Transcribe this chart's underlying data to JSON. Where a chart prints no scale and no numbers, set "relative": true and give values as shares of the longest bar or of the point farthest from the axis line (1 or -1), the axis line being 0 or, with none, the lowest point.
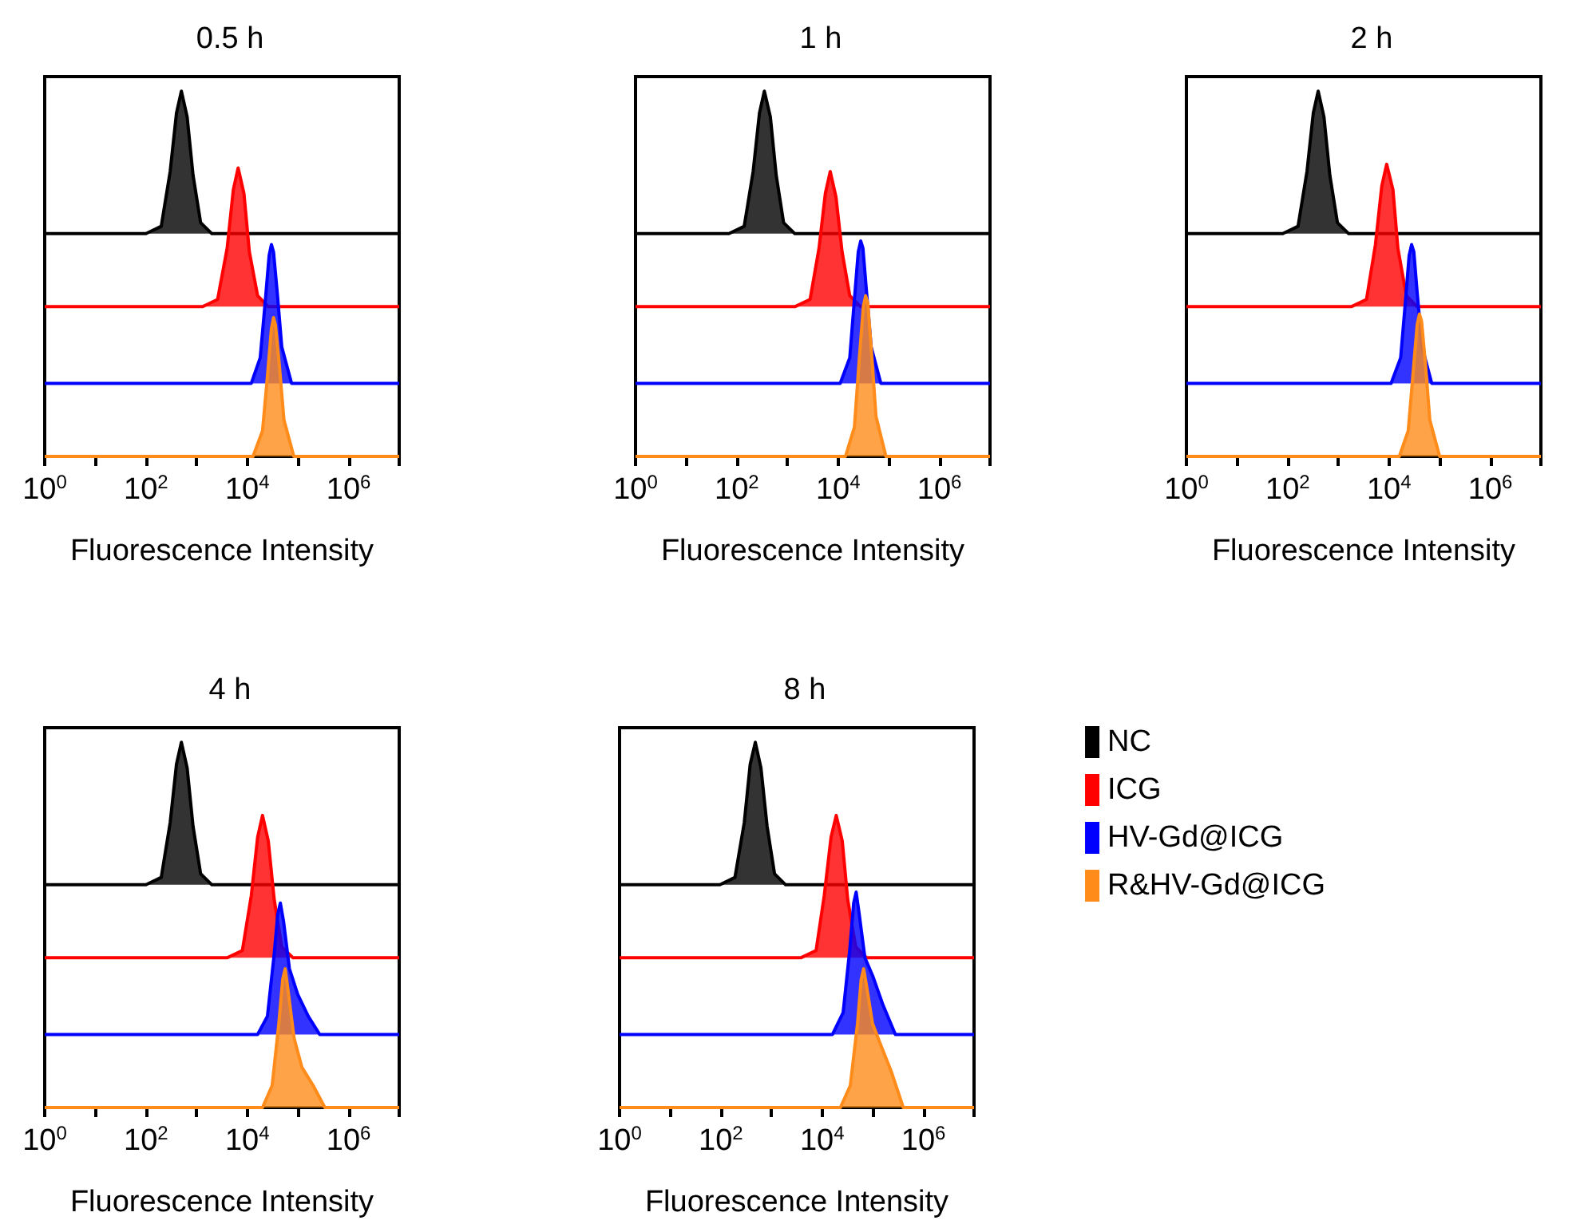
{
  "chart_data": [
    {
      "type": "area",
      "title": "0.5 h",
      "xlabel": "Fluorescence Intensity",
      "relative": true,
      "log": "x",
      "xlim": [
        1,
        10000000
      ],
      "xticks": [
        {
          "value": 1,
          "label": "10$^{0}$"
        },
        {
          "value": 10,
          "label": null
        },
        {
          "value": 100,
          "label": "10$^{2}$"
        },
        {
          "value": 1000,
          "label": null
        },
        {
          "value": 10000,
          "label": "10$^{4}$"
        },
        {
          "value": 100000,
          "label": null
        },
        {
          "value": 1000000,
          "label": "10$^{6}$"
        },
        {
          "value": 10000000,
          "label": null
        }
      ],
      "grid": false,
      "legend": false,
      "marker": "none",
      "series": [
        {
          "color": "#000000",
          "x": [
            1,
            100,
            200,
            300,
            400,
            500,
            650,
            850,
            1200,
            2000,
            10000000
          ],
          "values": [
            0.61,
            0.61,
            0.63,
            0.78,
            0.94,
            1,
            0.93,
            0.77,
            0.64,
            0.61,
            0.61
          ]
        },
        {
          "color": "#ff0000",
          "x": [
            1,
            1300,
            2600,
            4000,
            5300,
            6600,
            8600,
            11000,
            16000,
            26000,
            10000000
          ],
          "values": [
            0.41,
            0.41,
            0.43,
            0.57,
            0.73,
            0.79,
            0.72,
            0.56,
            0.44,
            0.41,
            0.41
          ]
        },
        {
          "color": "#0000ff",
          "x": [
            1,
            12000,
            18000,
            22500,
            27000,
            30000,
            33000,
            39000,
            48000,
            75000,
            10000000
          ],
          "values": [
            0.2,
            0.2,
            0.27,
            0.42,
            0.55,
            0.58,
            0.56,
            0.45,
            0.3,
            0.2,
            0.2
          ]
        },
        {
          "color": "#ff8c1a",
          "x": [
            1,
            13000,
            20000,
            25000,
            30000,
            33000,
            36000,
            43000,
            53000,
            83000,
            10000000
          ],
          "values": [
            0,
            0,
            0.07,
            0.22,
            0.35,
            0.38,
            0.36,
            0.25,
            0.1,
            0,
            0
          ]
        }
      ]
    },
    {
      "type": "area",
      "title": "1 h",
      "xlabel": "Fluorescence Intensity",
      "relative": true,
      "log": "x",
      "xlim": [
        1,
        10000000
      ],
      "xticks": [
        {
          "value": 1,
          "label": "10$^{0}$"
        },
        {
          "value": 10,
          "label": null
        },
        {
          "value": 100,
          "label": "10$^{2}$"
        },
        {
          "value": 1000,
          "label": null
        },
        {
          "value": 10000,
          "label": "10$^{4}$"
        },
        {
          "value": 100000,
          "label": null
        },
        {
          "value": 1000000,
          "label": "10$^{6}$"
        },
        {
          "value": 10000000,
          "label": null
        }
      ],
      "grid": false,
      "legend": false,
      "marker": "none",
      "series": [
        {
          "color": "#000000",
          "x": [
            1,
            70,
            140,
            210,
            280,
            350,
            460,
            600,
            840,
            1400,
            10000000
          ],
          "values": [
            0.61,
            0.61,
            0.63,
            0.78,
            0.94,
            1,
            0.93,
            0.77,
            0.64,
            0.61,
            0.61
          ]
        },
        {
          "color": "#ff0000",
          "x": [
            1,
            1400,
            2800,
            4200,
            5600,
            7000,
            9100,
            12000,
            17000,
            28000,
            10000000
          ],
          "values": [
            0.41,
            0.41,
            0.43,
            0.57,
            0.72,
            0.78,
            0.71,
            0.56,
            0.44,
            0.41,
            0.41
          ]
        },
        {
          "color": "#0000ff",
          "x": [
            1,
            11000,
            17000,
            21000,
            25000,
            28000,
            31000,
            36000,
            45000,
            70000,
            10000000
          ],
          "values": [
            0.2,
            0.2,
            0.27,
            0.43,
            0.56,
            0.59,
            0.57,
            0.46,
            0.3,
            0.2,
            0.2
          ]
        },
        {
          "color": "#ff8c1a",
          "x": [
            1,
            14000,
            21000,
            26000,
            31500,
            35000,
            38500,
            45500,
            56000,
            88000,
            10000000
          ],
          "values": [
            0,
            0,
            0.08,
            0.26,
            0.41,
            0.44,
            0.42,
            0.29,
            0.11,
            0,
            0
          ]
        }
      ]
    },
    {
      "type": "area",
      "title": "2 h",
      "xlabel": "Fluorescence Intensity",
      "relative": true,
      "log": "x",
      "xlim": [
        1,
        10000000
      ],
      "xticks": [
        {
          "value": 1,
          "label": "10$^{0}$"
        },
        {
          "value": 10,
          "label": null
        },
        {
          "value": 100,
          "label": "10$^{2}$"
        },
        {
          "value": 1000,
          "label": null
        },
        {
          "value": 10000,
          "label": "10$^{4}$"
        },
        {
          "value": 100000,
          "label": null
        },
        {
          "value": 1000000,
          "label": "10$^{6}$"
        },
        {
          "value": 10000000,
          "label": null
        }
      ],
      "grid": false,
      "legend": false,
      "marker": "none",
      "series": [
        {
          "color": "#000000",
          "x": [
            1,
            80,
            160,
            240,
            320,
            400,
            520,
            680,
            960,
            1600,
            10000000
          ],
          "values": [
            0.61,
            0.61,
            0.63,
            0.78,
            0.94,
            1,
            0.93,
            0.77,
            0.64,
            0.61,
            0.61
          ]
        },
        {
          "color": "#ff0000",
          "x": [
            1,
            1800,
            3600,
            5400,
            7200,
            9000,
            12000,
            15000,
            22000,
            36000,
            10000000
          ],
          "values": [
            0.41,
            0.41,
            0.43,
            0.58,
            0.74,
            0.8,
            0.73,
            0.57,
            0.44,
            0.41,
            0.41
          ]
        },
        {
          "color": "#0000ff",
          "x": [
            1,
            11000,
            17000,
            21000,
            25000,
            28000,
            31000,
            36000,
            45000,
            70000,
            10000000
          ],
          "values": [
            0.2,
            0.2,
            0.27,
            0.42,
            0.55,
            0.58,
            0.56,
            0.45,
            0.3,
            0.2,
            0.2
          ]
        },
        {
          "color": "#ff8c1a",
          "x": [
            1,
            16000,
            24000,
            30000,
            36000,
            40000,
            44000,
            52000,
            64000,
            100000,
            10000000
          ],
          "values": [
            0,
            0,
            0.07,
            0.23,
            0.36,
            0.39,
            0.37,
            0.26,
            0.1,
            0,
            0
          ]
        }
      ]
    },
    {
      "type": "area",
      "title": "4 h",
      "xlabel": "Fluorescence Intensity",
      "relative": true,
      "log": "x",
      "xlim": [
        1,
        10000000
      ],
      "xticks": [
        {
          "value": 1,
          "label": "10$^{0}$"
        },
        {
          "value": 10,
          "label": null
        },
        {
          "value": 100,
          "label": "10$^{2}$"
        },
        {
          "value": 1000,
          "label": null
        },
        {
          "value": 10000,
          "label": "10$^{4}$"
        },
        {
          "value": 100000,
          "label": null
        },
        {
          "value": 1000000,
          "label": "10$^{6}$"
        },
        {
          "value": 10000000,
          "label": null
        }
      ],
      "grid": false,
      "legend": false,
      "marker": "none",
      "series": [
        {
          "color": "#000000",
          "x": [
            1,
            100,
            200,
            300,
            400,
            500,
            650,
            850,
            1200,
            2000,
            10000000
          ],
          "values": [
            0.61,
            0.61,
            0.63,
            0.78,
            0.94,
            1,
            0.93,
            0.77,
            0.64,
            0.61,
            0.61
          ]
        },
        {
          "color": "#ff0000",
          "x": [
            1,
            4000,
            8000,
            12000,
            16000,
            20000,
            26000,
            34000,
            48000,
            80000,
            10000000
          ],
          "values": [
            0.41,
            0.41,
            0.43,
            0.58,
            0.74,
            0.8,
            0.73,
            0.57,
            0.44,
            0.41,
            0.41
          ]
        },
        {
          "color": "#0000ff",
          "x": [
            1,
            16000,
            25000,
            34000,
            40000,
            45000,
            52000,
            68000,
            99000,
            160000,
            270000,
            10000000
          ],
          "values": [
            0.2,
            0.2,
            0.25,
            0.42,
            0.53,
            0.56,
            0.51,
            0.38,
            0.31,
            0.25,
            0.2,
            0.2
          ]
        },
        {
          "color": "#ff8c1a",
          "x": [
            1,
            20000,
            31000,
            42000,
            50000,
            56000,
            64000,
            84000,
            120000,
            200000,
            340000,
            10000000
          ],
          "values": [
            0,
            0,
            0.06,
            0.23,
            0.35,
            0.38,
            0.32,
            0.19,
            0.11,
            0.06,
            0,
            0
          ]
        }
      ]
    },
    {
      "type": "area",
      "title": "8 h",
      "xlabel": "Fluorescence Intensity",
      "relative": true,
      "log": "x",
      "xlim": [
        1,
        10000000
      ],
      "xticks": [
        {
          "value": 1,
          "label": "10$^{0}$"
        },
        {
          "value": 10,
          "label": null
        },
        {
          "value": 100,
          "label": "10$^{2}$"
        },
        {
          "value": 1000,
          "label": null
        },
        {
          "value": 10000,
          "label": "10$^{4}$"
        },
        {
          "value": 100000,
          "label": null
        },
        {
          "value": 1000000,
          "label": "10$^{6}$"
        },
        {
          "value": 10000000,
          "label": null
        }
      ],
      "grid": false,
      "legend": "right",
      "marker": "none",
      "series": [
        {
          "name": "NC",
          "color": "#000000",
          "x": [
            1,
            96,
            190,
            290,
            380,
            480,
            620,
            820,
            1150,
            1900,
            10000000
          ],
          "values": [
            0.61,
            0.61,
            0.63,
            0.78,
            0.94,
            1,
            0.93,
            0.77,
            0.64,
            0.61,
            0.61
          ]
        },
        {
          "name": "ICG",
          "color": "#ff0000",
          "x": [
            1,
            3800,
            7600,
            11000,
            15000,
            19000,
            25000,
            32000,
            46000,
            76000,
            10000000
          ],
          "values": [
            0.41,
            0.41,
            0.43,
            0.58,
            0.74,
            0.8,
            0.73,
            0.57,
            0.44,
            0.41,
            0.41
          ]
        },
        {
          "name": "HV-Gd@ICG",
          "color": "#0000ff",
          "x": [
            1,
            16000,
            26000,
            35000,
            42000,
            47000,
            54000,
            70000,
            100000,
            160000,
            280000,
            10000000
          ],
          "values": [
            0.2,
            0.2,
            0.26,
            0.43,
            0.56,
            0.59,
            0.53,
            0.41,
            0.36,
            0.28,
            0.2,
            0.2
          ]
        },
        {
          "name": "R&HV-Gd@ICG",
          "color": "#ff8c1a",
          "x": [
            1,
            23000,
            36000,
            50000,
            59000,
            66000,
            76000,
            99000,
            145000,
            230000,
            400000,
            10000000
          ],
          "values": [
            0,
            0,
            0.06,
            0.23,
            0.35,
            0.38,
            0.33,
            0.23,
            0.17,
            0.1,
            0,
            0
          ]
        }
      ]
    }
  ]
}
